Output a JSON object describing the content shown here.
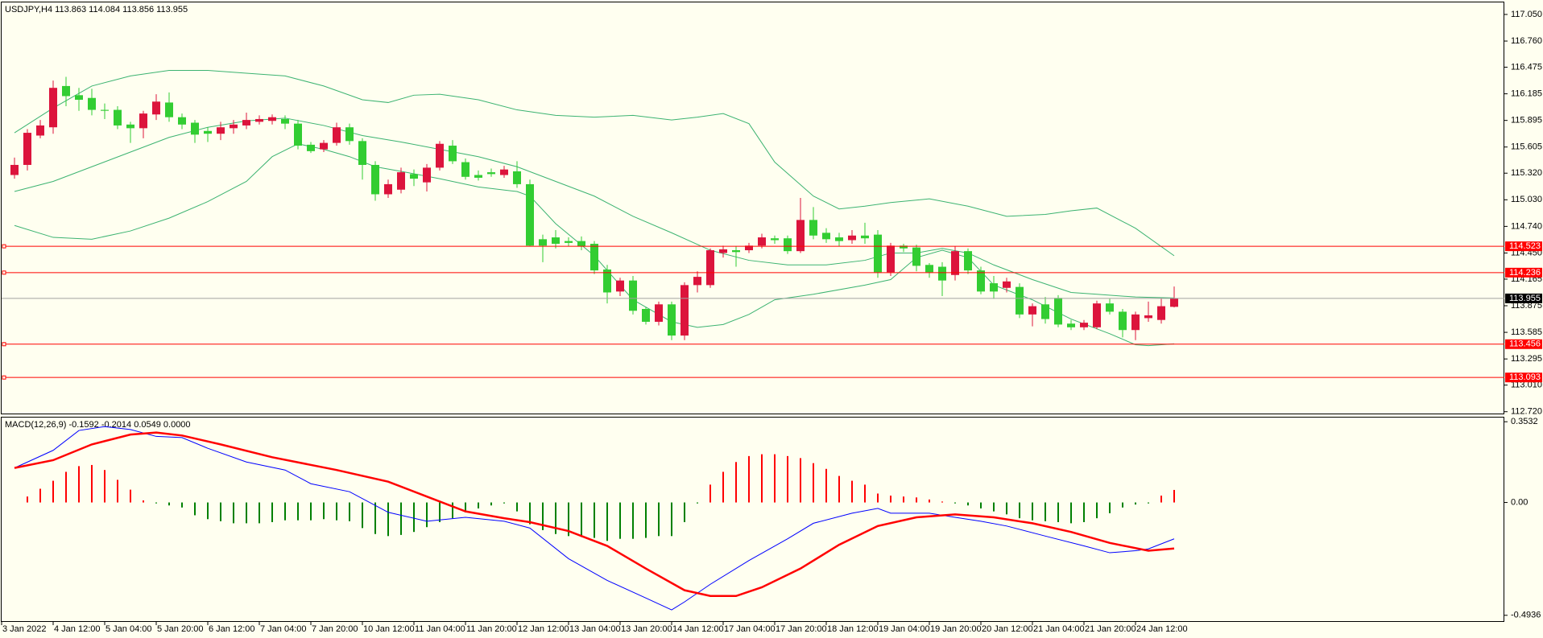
{
  "chart_data": [
    {
      "type": "candlestick",
      "title": "USDJPY,H4  113.863 114.084 113.856 113.955",
      "up_color": "#dc143c",
      "down_color": "#32cd32",
      "open": [
        115.3,
        115.41,
        115.73,
        115.82,
        116.27,
        116.17,
        116.14,
        116.01,
        116.01,
        115.85,
        115.81,
        115.96,
        116.09,
        115.93,
        115.87,
        115.78,
        115.75,
        115.81,
        115.84,
        115.88,
        115.89,
        115.91,
        115.86,
        115.63,
        115.58,
        115.65,
        115.82,
        115.67,
        115.41,
        115.09,
        115.14,
        115.31,
        115.22,
        115.38,
        115.62,
        115.44,
        115.3,
        115.33,
        115.3,
        115.34,
        115.2,
        114.6,
        114.62,
        114.58,
        114.58,
        114.55,
        114.27,
        114.03,
        114.15,
        113.84,
        113.7,
        113.89,
        113.55,
        114.1,
        114.1,
        114.45,
        114.48,
        114.48,
        114.53,
        114.61,
        114.61,
        114.47,
        114.81,
        114.67,
        114.62,
        114.59,
        114.64,
        114.65,
        114.24,
        114.53,
        114.51,
        114.32,
        114.3,
        114.21,
        114.47,
        114.26,
        114.12,
        114.07,
        114.08,
        113.78,
        113.89,
        113.96,
        113.68,
        113.64,
        113.64,
        113.9,
        113.81,
        113.61,
        113.74,
        113.72,
        113.863
      ],
      "high": [
        115.49,
        115.8,
        115.9,
        116.33,
        116.37,
        116.25,
        116.24,
        116.08,
        116.05,
        115.88,
        116.0,
        116.18,
        116.2,
        115.97,
        115.9,
        115.82,
        115.88,
        115.9,
        115.98,
        115.95,
        115.96,
        115.95,
        115.9,
        115.66,
        115.68,
        115.87,
        115.86,
        115.7,
        115.45,
        115.25,
        115.38,
        115.36,
        115.42,
        115.67,
        115.68,
        115.48,
        115.35,
        115.37,
        115.4,
        115.45,
        115.25,
        114.65,
        114.7,
        114.62,
        114.63,
        114.58,
        114.32,
        114.18,
        114.2,
        113.86,
        113.92,
        113.92,
        114.13,
        114.25,
        114.5,
        114.53,
        114.52,
        114.56,
        114.66,
        114.64,
        114.64,
        115.05,
        114.95,
        114.72,
        114.67,
        114.7,
        114.78,
        114.7,
        114.56,
        114.55,
        114.54,
        114.34,
        114.35,
        114.52,
        114.5,
        114.3,
        114.2,
        114.18,
        114.12,
        113.9,
        113.97,
        113.99,
        113.72,
        113.72,
        113.93,
        113.95,
        113.84,
        113.81,
        113.92,
        113.95,
        114.084
      ],
      "low": [
        115.26,
        115.35,
        115.7,
        115.75,
        116.05,
        116.0,
        115.95,
        115.91,
        115.8,
        115.65,
        115.7,
        115.9,
        115.88,
        115.8,
        115.65,
        115.66,
        115.68,
        115.75,
        115.8,
        115.85,
        115.85,
        115.8,
        115.58,
        115.54,
        115.55,
        115.62,
        115.63,
        115.25,
        115.02,
        115.05,
        115.1,
        115.18,
        115.12,
        115.35,
        115.42,
        115.25,
        115.24,
        115.28,
        115.27,
        115.16,
        114.52,
        114.35,
        114.5,
        114.52,
        114.48,
        114.22,
        113.9,
        113.98,
        113.78,
        113.67,
        113.66,
        113.5,
        113.5,
        114.02,
        114.07,
        114.4,
        114.3,
        114.45,
        114.5,
        114.55,
        114.44,
        114.45,
        114.6,
        114.56,
        114.52,
        114.55,
        114.55,
        114.18,
        114.2,
        114.46,
        114.25,
        114.18,
        113.98,
        114.15,
        114.22,
        114.0,
        113.95,
        114.02,
        113.74,
        113.65,
        113.68,
        113.64,
        113.61,
        113.61,
        113.62,
        113.78,
        113.53,
        113.5,
        113.7,
        113.68,
        113.856
      ],
      "close": [
        115.41,
        115.76,
        115.84,
        116.25,
        116.16,
        116.12,
        116.01,
        116.0,
        115.84,
        115.81,
        115.97,
        116.1,
        115.93,
        115.85,
        115.74,
        115.75,
        115.82,
        115.85,
        115.9,
        115.91,
        115.93,
        115.86,
        115.62,
        115.56,
        115.65,
        115.82,
        115.67,
        115.41,
        115.09,
        115.2,
        115.33,
        115.26,
        115.38,
        115.64,
        115.45,
        115.28,
        115.27,
        115.31,
        115.36,
        115.2,
        114.53,
        114.53,
        114.55,
        114.56,
        114.52,
        114.26,
        114.02,
        114.15,
        113.82,
        113.7,
        113.89,
        113.55,
        114.1,
        114.19,
        114.48,
        114.49,
        114.46,
        114.53,
        114.62,
        114.59,
        114.47,
        114.81,
        114.64,
        114.6,
        114.58,
        114.64,
        114.61,
        114.24,
        114.53,
        114.5,
        114.31,
        114.24,
        114.15,
        114.47,
        114.26,
        114.03,
        114.03,
        114.14,
        113.78,
        113.87,
        113.73,
        113.67,
        113.64,
        113.69,
        113.9,
        113.81,
        113.61,
        113.78,
        113.77,
        113.87,
        113.955
      ],
      "series": [
        {
          "color": "#3cb371",
          "x": [
            0,
            3,
            6,
            9,
            12,
            15,
            18,
            21,
            24,
            27,
            29,
            31,
            33,
            36,
            39,
            42,
            45,
            48,
            51,
            53,
            55,
            57,
            59,
            62,
            64,
            66,
            68,
            71,
            74,
            77,
            80,
            82,
            84,
            87,
            90
          ],
          "values": [
            115.76,
            116.03,
            116.27,
            116.38,
            116.44,
            116.44,
            116.41,
            116.38,
            116.27,
            116.12,
            116.09,
            116.17,
            116.18,
            116.12,
            116.01,
            115.95,
            115.93,
            115.95,
            115.9,
            115.93,
            115.97,
            115.86,
            115.44,
            115.07,
            114.93,
            114.96,
            115.0,
            115.04,
            114.96,
            114.85,
            114.87,
            114.91,
            114.94,
            114.72,
            114.42
          ]
        },
        {
          "color": "#3cb371",
          "x": [
            0,
            3,
            6,
            9,
            12,
            15,
            18,
            21,
            24,
            27,
            30,
            33,
            36,
            39,
            42,
            45,
            48,
            51,
            54,
            57,
            60,
            63,
            66,
            68,
            70,
            72,
            74,
            76,
            79,
            82,
            84,
            87,
            90
          ],
          "values": [
            115.12,
            115.23,
            115.39,
            115.55,
            115.71,
            115.82,
            115.89,
            115.92,
            115.84,
            115.73,
            115.66,
            115.58,
            115.5,
            115.39,
            115.23,
            115.07,
            114.85,
            114.67,
            114.48,
            114.37,
            114.32,
            114.32,
            114.37,
            114.45,
            114.45,
            114.5,
            114.45,
            114.32,
            114.16,
            114.02,
            114.0,
            113.97,
            113.96
          ]
        },
        {
          "color": "#3cb371",
          "x": [
            0,
            3,
            6,
            9,
            12,
            15,
            18,
            20,
            22,
            24,
            26,
            28,
            30,
            33,
            36,
            39,
            40,
            42,
            45,
            48,
            51,
            53,
            55,
            57,
            59,
            62,
            66,
            68,
            70,
            72,
            74,
            76,
            79,
            82,
            85,
            87,
            88,
            90
          ],
          "values": [
            114.75,
            114.62,
            114.6,
            114.69,
            114.83,
            115.01,
            115.23,
            115.5,
            115.64,
            115.58,
            115.5,
            115.39,
            115.34,
            115.26,
            115.17,
            115.12,
            115.07,
            114.77,
            114.42,
            113.94,
            113.7,
            113.64,
            113.67,
            113.78,
            113.94,
            114.0,
            114.1,
            114.16,
            114.4,
            114.48,
            114.4,
            114.1,
            113.94,
            113.73,
            113.57,
            113.45,
            113.44,
            113.46
          ]
        }
      ],
      "levels": [
        114.523,
        114.236,
        113.456,
        113.093
      ],
      "level_color": "#ff0000",
      "last_price": 113.955,
      "last_price_color": "#a0a0a0",
      "ylim": [
        112.7,
        117.19
      ],
      "yticks": [
        {
          "value": 117.05,
          "label": "117.050"
        },
        {
          "value": 116.76,
          "label": "116.760"
        },
        116.475,
        116.185,
        115.895,
        115.605,
        {
          "value": 115.32,
          "label": "115.320"
        },
        {
          "value": 115.03,
          "label": "115.030"
        },
        {
          "value": 114.74,
          "label": "114.740"
        },
        {
          "value": 114.45,
          "label": "114.450"
        },
        114.165,
        113.875,
        113.585,
        113.295,
        {
          "value": 113.01,
          "label": "113.010"
        },
        {
          "value": 112.72,
          "label": "112.720"
        }
      ],
      "xticks": [
        {
          "value": -1,
          "label": "3 Jan 2022"
        },
        {
          "value": 3,
          "label": "4 Jan 12:00"
        },
        {
          "value": 7,
          "label": "5 Jan 04:00"
        },
        {
          "value": 11,
          "label": "5 Jan 20:00"
        },
        {
          "value": 15,
          "label": "6 Jan 12:00"
        },
        {
          "value": 19,
          "label": "7 Jan 04:00"
        },
        {
          "value": 23,
          "label": "7 Jan 20:00"
        },
        {
          "value": 27,
          "label": "10 Jan 12:00"
        },
        {
          "value": 31,
          "label": "11 Jan 04:00"
        },
        {
          "value": 35,
          "label": "11 Jan 20:00"
        },
        {
          "value": 39,
          "label": "12 Jan 12:00"
        },
        {
          "value": 43,
          "label": "13 Jan 04:00"
        },
        {
          "value": 47,
          "label": "13 Jan 20:00"
        },
        {
          "value": 51,
          "label": "14 Jan 12:00"
        },
        {
          "value": 55,
          "label": "17 Jan 04:00"
        },
        {
          "value": 59,
          "label": "17 Jan 20:00"
        },
        {
          "value": 63,
          "label": "18 Jan 12:00"
        },
        {
          "value": 67,
          "label": "19 Jan 04:00"
        },
        {
          "value": 71,
          "label": "19 Jan 20:00"
        },
        {
          "value": 75,
          "label": "20 Jan 12:00"
        },
        {
          "value": 79,
          "label": "21 Jan 04:00"
        },
        {
          "value": 83,
          "label": "21 Jan 20:00"
        },
        {
          "value": 87,
          "label": "24 Jan 12:00"
        }
      ]
    },
    {
      "type": "macd",
      "title": "MACD(12,26,9) -0.1592 -0.2014 0.0549 0.0000",
      "up_color": "#ff0000",
      "down_color": "#008000",
      "histogram": [
        0.0,
        0.026,
        0.06,
        0.095,
        0.134,
        0.159,
        0.164,
        0.142,
        0.099,
        0.056,
        0.009,
        -0.004,
        -0.013,
        -0.022,
        -0.056,
        -0.073,
        -0.082,
        -0.091,
        -0.091,
        -0.091,
        -0.086,
        -0.078,
        -0.078,
        -0.078,
        -0.073,
        -0.078,
        -0.082,
        -0.112,
        -0.138,
        -0.147,
        -0.142,
        -0.129,
        -0.108,
        -0.086,
        -0.069,
        -0.043,
        -0.026,
        -0.013,
        -0.004,
        -0.039,
        -0.095,
        -0.121,
        -0.138,
        -0.147,
        -0.151,
        -0.155,
        -0.168,
        -0.159,
        -0.159,
        -0.155,
        -0.147,
        -0.147,
        -0.086,
        -0.004,
        0.078,
        0.134,
        0.177,
        0.203,
        0.211,
        0.211,
        0.203,
        0.194,
        0.172,
        0.147,
        0.116,
        0.095,
        0.078,
        0.039,
        0.03,
        0.026,
        0.022,
        0.013,
        0.004,
        -0.004,
        -0.013,
        -0.026,
        -0.039,
        -0.052,
        -0.069,
        -0.078,
        -0.082,
        -0.086,
        -0.091,
        -0.086,
        -0.069,
        -0.047,
        -0.022,
        -0.009,
        -0.004,
        0.03,
        0.0549
      ],
      "series": [
        {
          "color": "#0000ff",
          "width": 1,
          "x": [
            0,
            3,
            5,
            7,
            9,
            11,
            13,
            15,
            18,
            21,
            23,
            26,
            29,
            32,
            35,
            38,
            40,
            43,
            46,
            49,
            51,
            52,
            54,
            57,
            60,
            62,
            65,
            67,
            68,
            71,
            73,
            75,
            77,
            80,
            83,
            85,
            87,
            88,
            90
          ],
          "values": [
            0.151,
            0.228,
            0.315,
            0.332,
            0.319,
            0.289,
            0.284,
            0.237,
            0.177,
            0.142,
            0.082,
            0.047,
            -0.043,
            -0.082,
            -0.065,
            -0.082,
            -0.112,
            -0.246,
            -0.341,
            -0.418,
            -0.47,
            -0.435,
            -0.358,
            -0.254,
            -0.159,
            -0.091,
            -0.047,
            -0.026,
            -0.047,
            -0.047,
            -0.065,
            -0.082,
            -0.103,
            -0.147,
            -0.19,
            -0.22,
            -0.211,
            -0.203,
            -0.1592
          ]
        },
        {
          "color": "#ff0000",
          "width": 2.5,
          "x": [
            0,
            3,
            6,
            9,
            11,
            13,
            16,
            20,
            25,
            29,
            32,
            35,
            38,
            40,
            43,
            46,
            49,
            52,
            54,
            56,
            58,
            61,
            64,
            67,
            70,
            73,
            76,
            79,
            82,
            85,
            88,
            90
          ],
          "values": [
            0.151,
            0.185,
            0.254,
            0.297,
            0.306,
            0.293,
            0.254,
            0.198,
            0.142,
            0.091,
            0.026,
            -0.039,
            -0.069,
            -0.086,
            -0.125,
            -0.19,
            -0.289,
            -0.384,
            -0.409,
            -0.409,
            -0.371,
            -0.289,
            -0.185,
            -0.103,
            -0.065,
            -0.052,
            -0.065,
            -0.091,
            -0.129,
            -0.177,
            -0.211,
            -0.2014
          ]
        }
      ],
      "ylim": [
        -0.519,
        0.375
      ],
      "yticks": [
        0.3532,
        {
          "value": 0,
          "label": "0.00"
        },
        -0.4936
      ]
    }
  ]
}
